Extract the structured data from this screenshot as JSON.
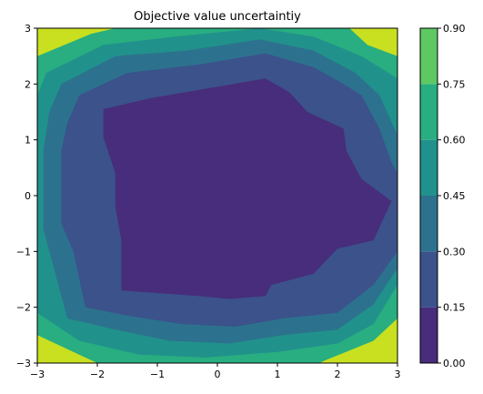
{
  "chart_data": {
    "type": "heatmap",
    "subtype": "filled-contour",
    "title": "Objective value uncertaintiy",
    "xlabel": "",
    "ylabel": "",
    "xlim": [
      -3,
      3
    ],
    "ylim": [
      -3,
      3
    ],
    "xticks": [
      "−3",
      "−2",
      "−1",
      "0",
      "1",
      "2",
      "3"
    ],
    "yticks": [
      "−3",
      "−2",
      "−1",
      "0",
      "1",
      "2",
      "3"
    ],
    "colorbar": {
      "levels": [
        0.0,
        0.15,
        0.3,
        0.45,
        0.6,
        0.75,
        0.9
      ],
      "tick_labels": [
        "0.00",
        "0.15",
        "0.30",
        "0.45",
        "0.60",
        "0.75",
        "0.90"
      ],
      "colors": [
        "#472d7b",
        "#3b528b",
        "#2c728e",
        "#21918c",
        "#28ae80",
        "#5ec962",
        "#c8e020"
      ]
    },
    "grid": false,
    "contour_bands": [
      {
        "band": "0.00-0.15",
        "boundary": [
          [
            -1.9,
            1.55
          ],
          [
            -1.1,
            1.75
          ],
          [
            0.0,
            1.95
          ],
          [
            0.8,
            2.1
          ],
          [
            1.2,
            1.85
          ],
          [
            1.5,
            1.5
          ],
          [
            2.1,
            1.2
          ],
          [
            2.15,
            0.8
          ],
          [
            2.4,
            0.3
          ],
          [
            2.9,
            -0.1
          ],
          [
            2.6,
            -0.8
          ],
          [
            2.0,
            -0.95
          ],
          [
            1.6,
            -1.4
          ],
          [
            0.9,
            -1.6
          ],
          [
            0.8,
            -1.8
          ],
          [
            0.2,
            -1.85
          ],
          [
            -0.3,
            -1.8
          ],
          [
            -1.6,
            -1.7
          ],
          [
            -1.6,
            -0.8
          ],
          [
            -1.7,
            -0.2
          ],
          [
            -1.7,
            0.4
          ],
          [
            -1.9,
            1.05
          ]
        ]
      },
      {
        "band": "0.15-0.30",
        "boundary": [
          [
            -2.3,
            1.8
          ],
          [
            -1.5,
            2.2
          ],
          [
            -0.3,
            2.35
          ],
          [
            0.8,
            2.55
          ],
          [
            1.6,
            2.3
          ],
          [
            2.1,
            2.0
          ],
          [
            2.4,
            1.8
          ],
          [
            2.7,
            1.2
          ],
          [
            2.9,
            0.6
          ],
          [
            3.0,
            0.4
          ],
          [
            3.0,
            -1.0
          ],
          [
            2.6,
            -1.6
          ],
          [
            2.0,
            -2.1
          ],
          [
            1.1,
            -2.2
          ],
          [
            0.3,
            -2.35
          ],
          [
            -0.6,
            -2.3
          ],
          [
            -1.5,
            -2.15
          ],
          [
            -2.2,
            -2.0
          ],
          [
            -2.4,
            -1.0
          ],
          [
            -2.6,
            -0.5
          ],
          [
            -2.6,
            0.8
          ],
          [
            -2.5,
            1.3
          ]
        ]
      },
      {
        "band": "0.30-0.45",
        "boundary": [
          [
            -2.6,
            2.0
          ],
          [
            -1.7,
            2.5
          ],
          [
            -0.5,
            2.6
          ],
          [
            0.7,
            2.8
          ],
          [
            1.6,
            2.6
          ],
          [
            2.3,
            2.2
          ],
          [
            2.7,
            1.8
          ],
          [
            2.95,
            1.2
          ],
          [
            3.0,
            1.1
          ],
          [
            3.0,
            -1.3
          ],
          [
            2.6,
            -1.95
          ],
          [
            2.0,
            -2.4
          ],
          [
            1.1,
            -2.5
          ],
          [
            0.2,
            -2.65
          ],
          [
            -0.8,
            -2.6
          ],
          [
            -1.7,
            -2.4
          ],
          [
            -2.5,
            -2.2
          ],
          [
            -2.7,
            -1.4
          ],
          [
            -2.9,
            -0.6
          ],
          [
            -2.9,
            0.8
          ],
          [
            -2.8,
            1.5
          ]
        ]
      },
      {
        "band": "0.45-0.60",
        "boundary": [
          [
            -2.85,
            2.2
          ],
          [
            -1.9,
            2.7
          ],
          [
            -0.7,
            2.85
          ],
          [
            0.7,
            3.0
          ],
          [
            1.6,
            2.85
          ],
          [
            2.4,
            2.5
          ],
          [
            3.0,
            2.1
          ],
          [
            3.0,
            -1.6
          ],
          [
            2.6,
            -2.3
          ],
          [
            2.0,
            -2.65
          ],
          [
            1.0,
            -2.8
          ],
          [
            -0.2,
            -2.9
          ],
          [
            -1.3,
            -2.85
          ],
          [
            -2.3,
            -2.6
          ],
          [
            -3.0,
            -2.1
          ],
          [
            -3.0,
            1.8
          ]
        ]
      },
      {
        "band": "0.60-0.75",
        "boundary": [
          [
            -3.0,
            2.5
          ],
          [
            -2.1,
            2.9
          ],
          [
            -1.7,
            3.0
          ],
          [
            2.2,
            3.0
          ],
          [
            2.5,
            2.7
          ],
          [
            3.0,
            2.5
          ],
          [
            3.0,
            -2.2
          ],
          [
            2.6,
            -2.6
          ],
          [
            1.8,
            -2.95
          ],
          [
            1.7,
            -3.0
          ],
          [
            -2.0,
            -3.0
          ],
          [
            -2.4,
            -2.8
          ],
          [
            -3.0,
            -2.5
          ]
        ]
      }
    ]
  }
}
